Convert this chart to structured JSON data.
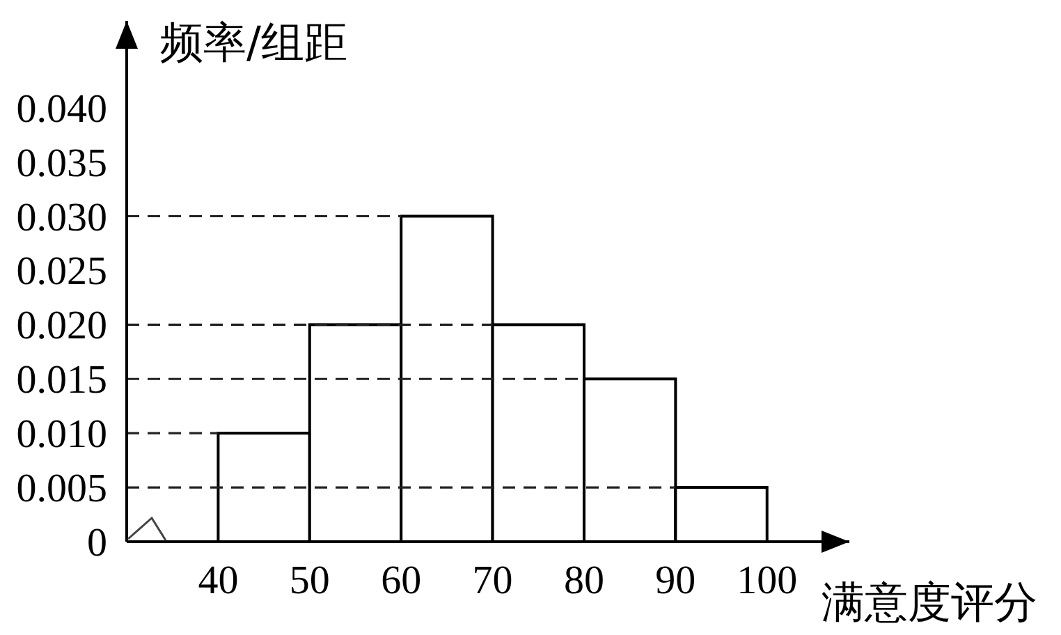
{
  "chart_data": {
    "type": "histogram",
    "xlabel": "满意度评分",
    "ylabel": "频率/组距",
    "bins": [
      40,
      50,
      60,
      70,
      80,
      90,
      100
    ],
    "values": [
      0.01,
      0.02,
      0.03,
      0.02,
      0.015,
      0.005
    ],
    "color": "#000000",
    "xlim": [
      30,
      109
    ],
    "xticks": [
      40,
      50,
      60,
      70,
      80,
      90,
      100
    ],
    "ylim": [
      0,
      0.048
    ],
    "yticks": [
      0,
      0.005,
      {
        "value": 0.01,
        "label": "0.010"
      },
      0.015,
      {
        "value": 0.02,
        "label": "0.020"
      },
      0.025,
      {
        "value": 0.03,
        "label": "0.030"
      },
      0.035,
      {
        "value": 0.04,
        "label": "0.040"
      }
    ],
    "ref_lines": [
      {
        "axis": "y",
        "value": 0.03,
        "line_style": "dashed"
      },
      {
        "axis": "y",
        "value": 0.02,
        "line_style": "dashed"
      },
      {
        "axis": "y",
        "value": 0.015,
        "line_style": "dashed"
      },
      {
        "axis": "y",
        "value": 0.01,
        "line_style": "dashed"
      },
      {
        "axis": "y",
        "value": 0.005,
        "line_style": "dashed"
      }
    ]
  }
}
